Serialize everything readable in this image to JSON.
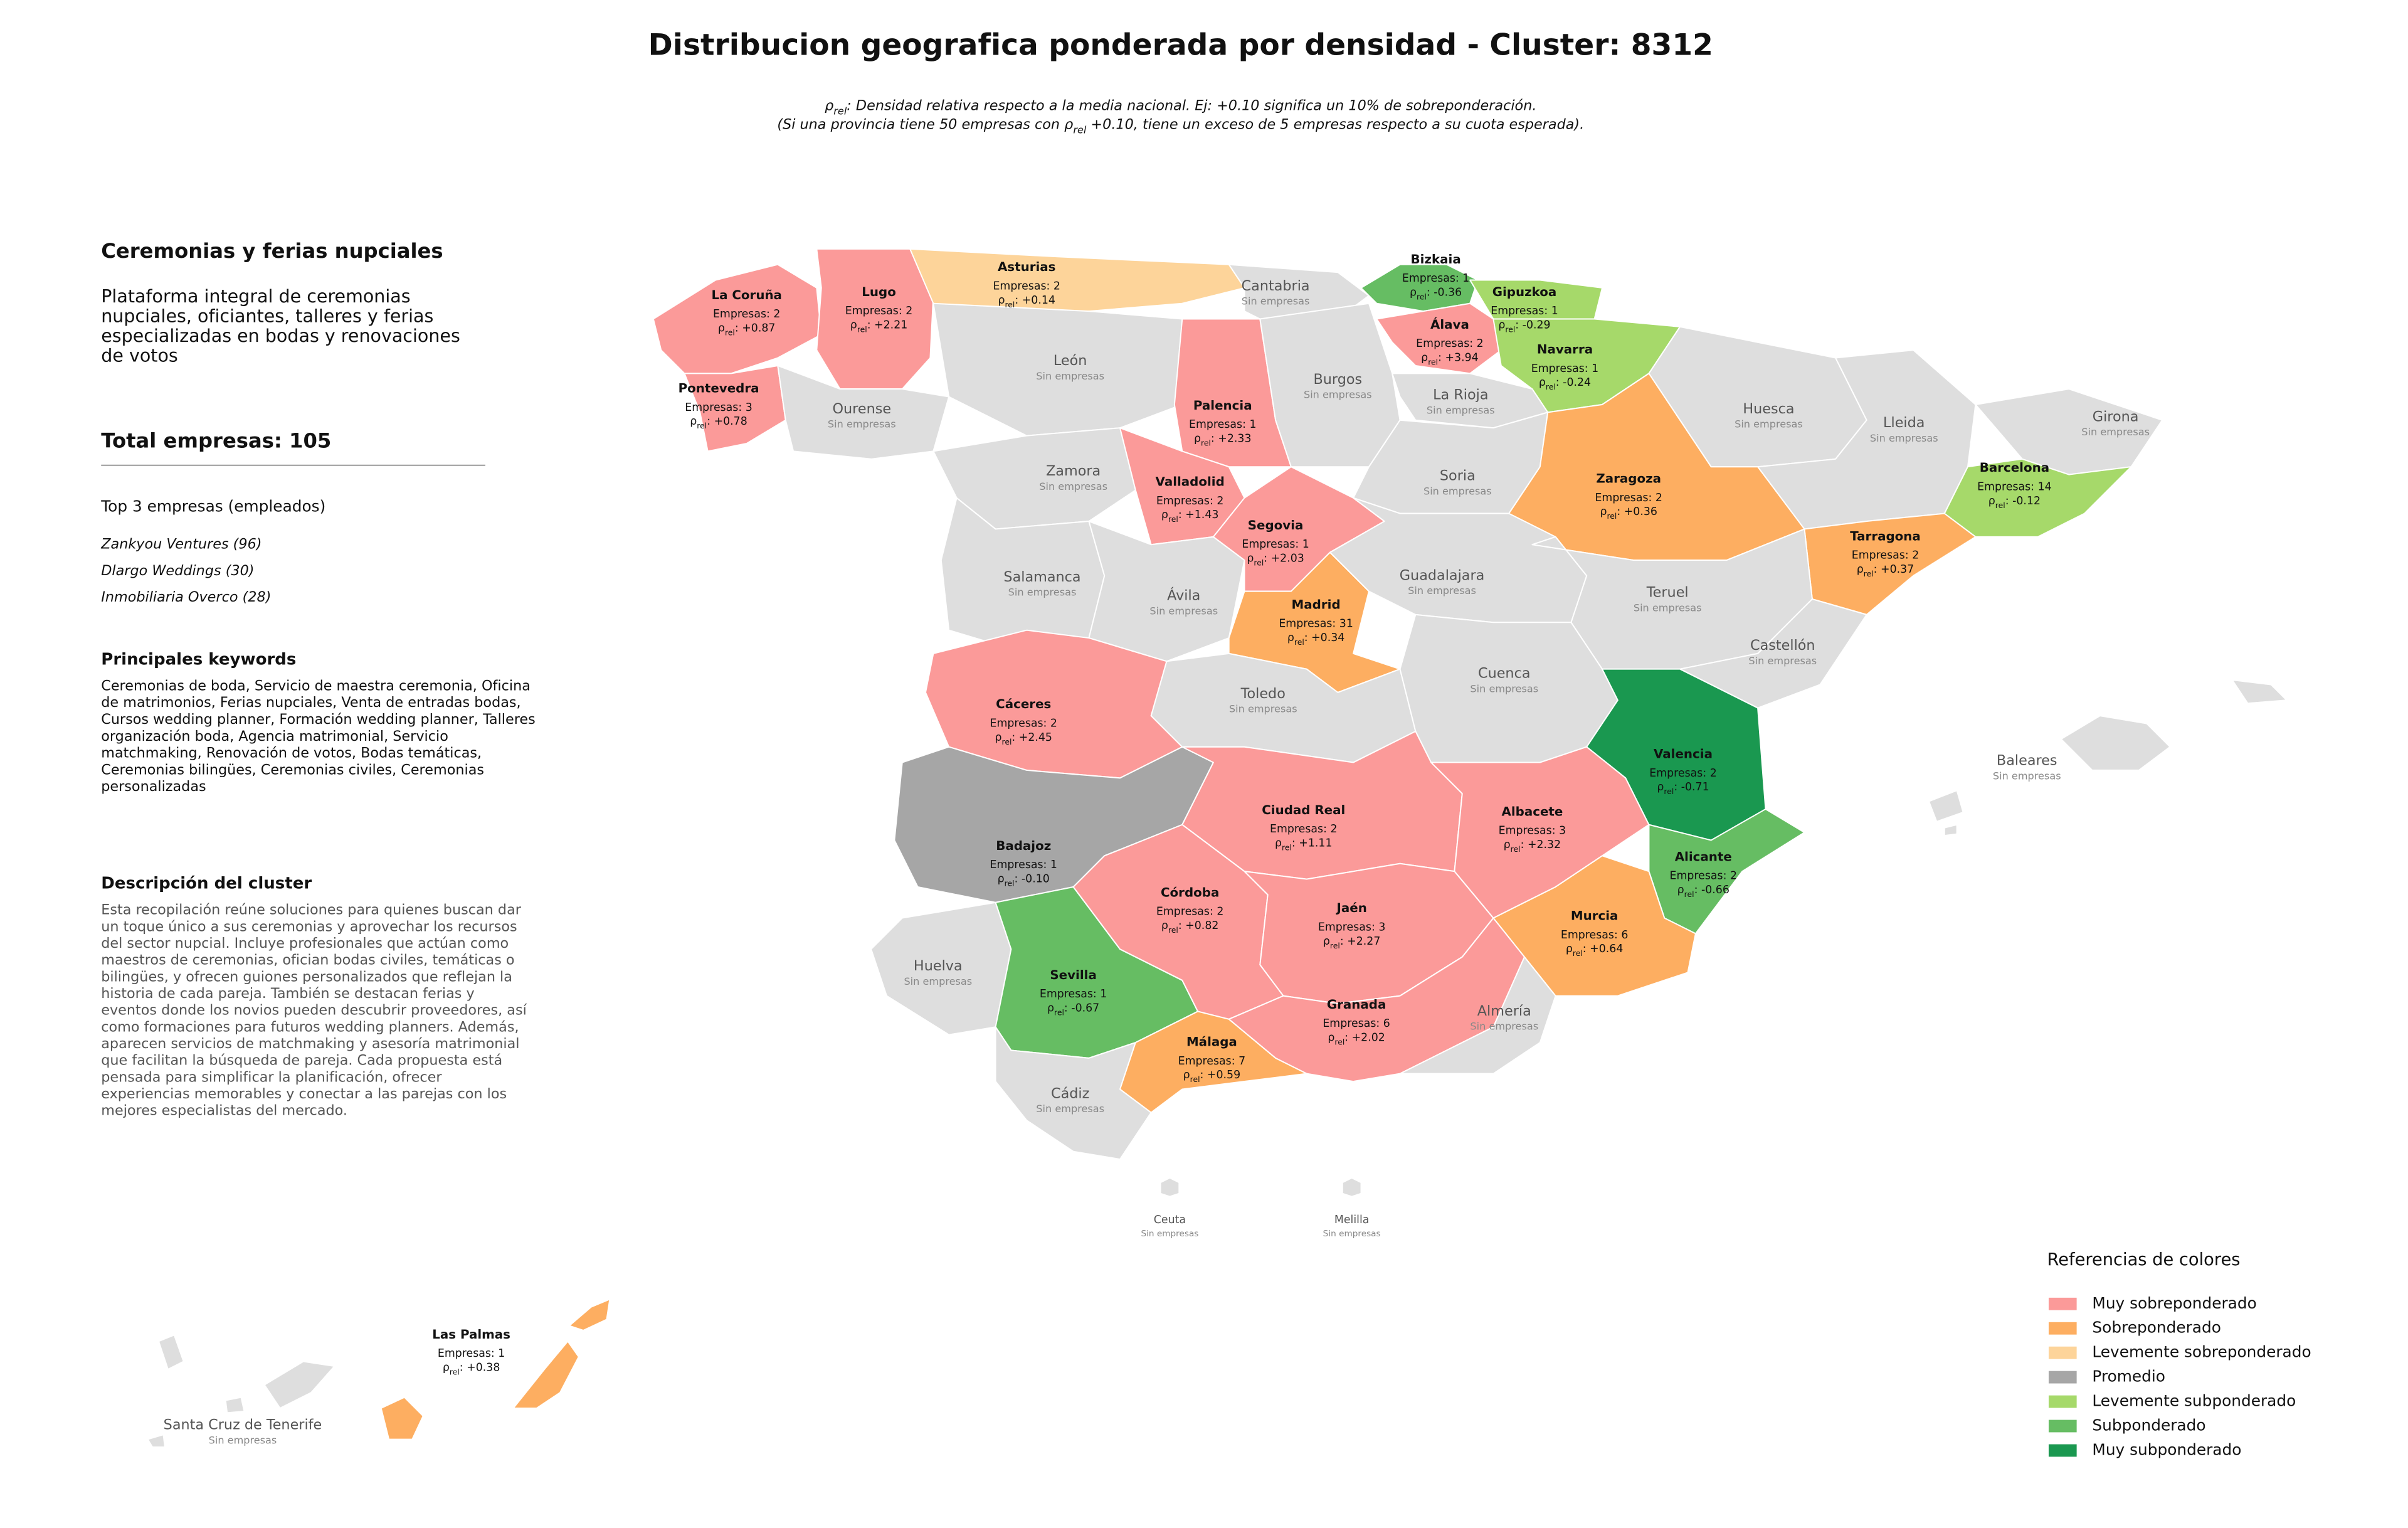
{
  "title": "Distribucion geografica ponderada por densidad - Cluster: 8312",
  "rho": {
    "symbol": "ρ",
    "sub": "rel"
  },
  "subtitle": {
    "line1": ": Densidad relativa respecto a la media nacional. Ej: +0.10 significa un 10% de sobreponderación.",
    "line2_start": "(Si una provincia tiene 50 empresas con ",
    "line2_end": " +0.10, tiene un exceso de 5 empresas respecto a su cuota esperada)."
  },
  "panel": {
    "heading": "Ceremonias y ferias nupciales",
    "summary": [
      "Plataforma integral de ceremonias",
      "nupciales, oficiantes, talleres y ferias",
      "especializadas en bodas y renovaciones",
      "de votos"
    ],
    "total": "Total empresas: 105",
    "top_title": "Top 3 empresas (empleados)",
    "top": [
      "Zankyou Ventures (96)",
      "Dlargo Weddings (30)",
      "Inmobiliaria Overco (28)"
    ],
    "keywords_title": "Principales keywords",
    "keywords": [
      "Ceremonias de boda, Servicio de maestra ceremonia, Oficina",
      "de matrimonios, Ferias nupciales, Venta de entradas bodas,",
      "Cursos wedding planner, Formación wedding planner, Talleres",
      "organización boda, Agencia matrimonial, Servicio",
      "matchmaking, Renovación de votos, Bodas temáticas,",
      "Ceremonias bilingües, Ceremonias civiles, Ceremonias",
      "personalizadas"
    ],
    "description_title": "Descripción del cluster",
    "description": [
      "Esta recopilación reúne soluciones para quienes buscan dar",
      "un toque único a sus ceremonias y aprovechar los recursos",
      "del sector nupcial. Incluye profesionales que actúan como",
      "maestros de ceremonias, ofician bodas civiles, temáticas o",
      "bilingües, y ofrecen guiones personalizados que reflejan la",
      "historia de cada pareja. También se destacan ferias y",
      "eventos donde los novios pueden descubrir proveedores, así",
      "como formaciones para futuros wedding planners. Además,",
      "aparecen servicios de matchmaking y asesoría matrimonial",
      "que facilitan la búsqueda de pareja. Cada propuesta está",
      "pensada para simplificar la planificación, ofrecer",
      "experiencias memorables y conectar a las parejas con los",
      "mejores especialistas del mercado."
    ]
  },
  "provinces": [
    {
      "name": "La Coruña",
      "empresas": "Empresas: 2",
      "rho": ": +0.87",
      "color": "#fb9a99"
    },
    {
      "name": "Lugo",
      "empresas": "Empresas: 2",
      "rho": ": +2.21",
      "color": "#fb9a99"
    },
    {
      "name": "Pontevedra",
      "empresas": "Empresas: 3",
      "rho": ": +0.78",
      "color": "#fb9a99"
    },
    {
      "name": "Ourense",
      "note": "Sin empresas",
      "color": "#dedede"
    },
    {
      "name": "Asturias",
      "empresas": "Empresas: 2",
      "rho": ": +0.14",
      "color": "#fdd49a"
    },
    {
      "name": "Cantabria",
      "note": "Sin empresas",
      "color": "#dedede"
    },
    {
      "name": "Bizkaia",
      "empresas": "Empresas: 1",
      "rho": ": -0.36",
      "color": "#66bd63"
    },
    {
      "name": "Gipuzkoa",
      "empresas": "Empresas: 1",
      "rho": ": -0.29",
      "color": "#a6d96a"
    },
    {
      "name": "Álava",
      "empresas": "Empresas: 2",
      "rho": ": +3.94",
      "color": "#fb9a99"
    },
    {
      "name": "Navarra",
      "empresas": "Empresas: 1",
      "rho": ": -0.24",
      "color": "#a6d96a"
    },
    {
      "name": "La Rioja",
      "note": "Sin empresas",
      "color": "#dedede"
    },
    {
      "name": "León",
      "note": "Sin empresas",
      "color": "#dedede"
    },
    {
      "name": "Palencia",
      "empresas": "Empresas: 1",
      "rho": ": +2.33",
      "color": "#fb9a99"
    },
    {
      "name": "Burgos",
      "note": "Sin empresas",
      "color": "#dedede"
    },
    {
      "name": "Zamora",
      "note": "Sin empresas",
      "color": "#dedede"
    },
    {
      "name": "Valladolid",
      "empresas": "Empresas: 2",
      "rho": ": +1.43",
      "color": "#fb9a99"
    },
    {
      "name": "Soria",
      "note": "Sin empresas",
      "color": "#dedede"
    },
    {
      "name": "Huesca",
      "note": "Sin empresas",
      "color": "#dedede"
    },
    {
      "name": "Zaragoza",
      "empresas": "Empresas: 2",
      "rho": ": +0.36",
      "color": "#fdae61"
    },
    {
      "name": "Lleida",
      "note": "Sin empresas",
      "color": "#dedede"
    },
    {
      "name": "Girona",
      "note": "Sin empresas",
      "color": "#dedede"
    },
    {
      "name": "Barcelona",
      "empresas": "Empresas: 14",
      "rho": ": -0.12",
      "color": "#a6d96a"
    },
    {
      "name": "Tarragona",
      "empresas": "Empresas: 2",
      "rho": ": +0.37",
      "color": "#fdae61"
    },
    {
      "name": "Salamanca",
      "note": "Sin empresas",
      "color": "#dedede"
    },
    {
      "name": "Ávila",
      "note": "Sin empresas",
      "color": "#dedede"
    },
    {
      "name": "Segovia",
      "empresas": "Empresas: 1",
      "rho": ": +2.03",
      "color": "#fb9a99"
    },
    {
      "name": "Madrid",
      "empresas": "Empresas: 31",
      "rho": ": +0.34",
      "color": "#fdae61"
    },
    {
      "name": "Guadalajara",
      "note": "Sin empresas",
      "color": "#dedede"
    },
    {
      "name": "Teruel",
      "note": "Sin empresas",
      "color": "#dedede"
    },
    {
      "name": "Castellón",
      "note": "Sin empresas",
      "color": "#dedede"
    },
    {
      "name": "Cáceres",
      "empresas": "Empresas: 2",
      "rho": ": +2.45",
      "color": "#fb9a99"
    },
    {
      "name": "Toledo",
      "note": "Sin empresas",
      "color": "#dedede"
    },
    {
      "name": "Cuenca",
      "note": "Sin empresas",
      "color": "#dedede"
    },
    {
      "name": "Valencia",
      "empresas": "Empresas: 2",
      "rho": ": -0.71",
      "color": "#1a9850"
    },
    {
      "name": "Badajoz",
      "empresas": "Empresas: 1",
      "rho": ": -0.10",
      "color": "#a6a6a6"
    },
    {
      "name": "Ciudad Real",
      "empresas": "Empresas: 2",
      "rho": ": +1.11",
      "color": "#fb9a99"
    },
    {
      "name": "Albacete",
      "empresas": "Empresas: 3",
      "rho": ": +2.32",
      "color": "#fb9a99"
    },
    {
      "name": "Alicante",
      "empresas": "Empresas: 2",
      "rho": ": -0.66",
      "color": "#66bd63"
    },
    {
      "name": "Murcia",
      "empresas": "Empresas: 6",
      "rho": ": +0.64",
      "color": "#fdae61"
    },
    {
      "name": "Huelva",
      "note": "Sin empresas",
      "color": "#dedede"
    },
    {
      "name": "Sevilla",
      "empresas": "Empresas: 1",
      "rho": ": -0.67",
      "color": "#66bd63"
    },
    {
      "name": "Córdoba",
      "empresas": "Empresas: 2",
      "rho": ": +0.82",
      "color": "#fb9a99"
    },
    {
      "name": "Jaén",
      "empresas": "Empresas: 3",
      "rho": ": +2.27",
      "color": "#fb9a99"
    },
    {
      "name": "Granada",
      "empresas": "Empresas: 6",
      "rho": ": +2.02",
      "color": "#fb9a99"
    },
    {
      "name": "Almería",
      "note": "Sin empresas",
      "color": "#dedede"
    },
    {
      "name": "Cádiz",
      "note": "Sin empresas",
      "color": "#dedede"
    },
    {
      "name": "Málaga",
      "empresas": "Empresas: 7",
      "rho": ": +0.59",
      "color": "#fdae61"
    },
    {
      "name": "Baleares",
      "note": "Sin empresas",
      "color": "#dedede"
    },
    {
      "name": "Ceuta",
      "note": "Sin empresas",
      "color": "#dedede"
    },
    {
      "name": "Melilla",
      "note": "Sin empresas",
      "color": "#dedede"
    },
    {
      "name": "Las Palmas",
      "empresas": "Empresas: 1",
      "rho": ": +0.38",
      "color": "#fdae61"
    },
    {
      "name": "Santa Cruz de Tenerife",
      "note": "Sin empresas",
      "color": "#dedede"
    }
  ],
  "legend": {
    "title": "Referencias de colores",
    "items": [
      {
        "label": "Muy sobreponderado",
        "color": "#fb9a99"
      },
      {
        "label": "Sobreponderado",
        "color": "#fdae61"
      },
      {
        "label": "Levemente sobreponderado",
        "color": "#fdd49a"
      },
      {
        "label": "Promedio",
        "color": "#a6a6a6"
      },
      {
        "label": "Levemente subponderado",
        "color": "#a6d96a"
      },
      {
        "label": "Subponderado",
        "color": "#66bd63"
      },
      {
        "label": "Muy subponderado",
        "color": "#1a9850"
      }
    ]
  }
}
